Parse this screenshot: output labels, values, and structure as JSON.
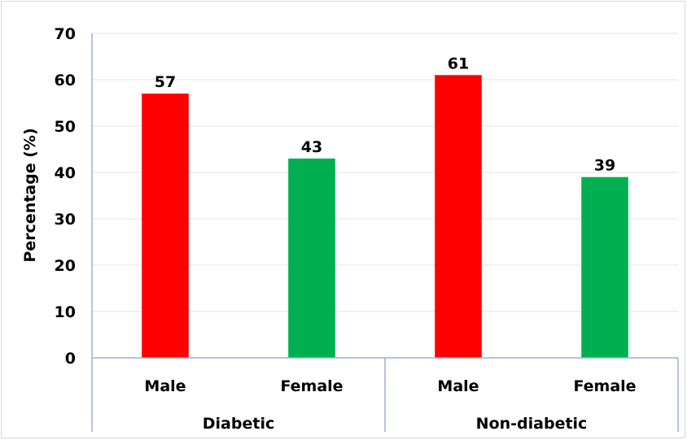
{
  "chart_data": {
    "type": "bar",
    "ylabel": "Percentage (%)",
    "xlabel": "",
    "ylim": [
      0,
      70
    ],
    "yticks": [
      0,
      10,
      20,
      30,
      40,
      50,
      60,
      70
    ],
    "grid": true,
    "groups": [
      {
        "name": "Diabetic",
        "bars": [
          {
            "category": "Male",
            "value": 57,
            "color": "#ff0000"
          },
          {
            "category": "Female",
            "value": 43,
            "color": "#00b050"
          }
        ]
      },
      {
        "name": "Non-diabetic",
        "bars": [
          {
            "category": "Male",
            "value": 61,
            "color": "#ff0000"
          },
          {
            "category": "Female",
            "value": 39,
            "color": "#00b050"
          }
        ]
      }
    ]
  }
}
